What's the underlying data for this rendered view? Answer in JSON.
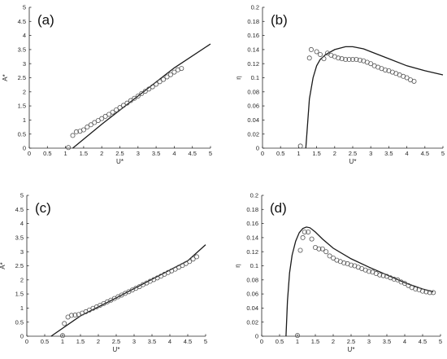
{
  "chart_data": [
    {
      "type": "scatter",
      "panel": "(a)",
      "xlabel": "U*",
      "ylabel": "A*",
      "xlim": [
        0,
        5
      ],
      "ylim": [
        0,
        5
      ],
      "xticks": [
        "0",
        "0.5",
        "1",
        "1.5",
        "2",
        "2.5",
        "3",
        "3.5",
        "4",
        "4.5",
        "5"
      ],
      "yticks": [
        "0",
        "0.5",
        "1",
        "1.5",
        "2",
        "2.5",
        "3",
        "3.5",
        "4",
        "4.5",
        "5"
      ],
      "grid": false,
      "series": [
        {
          "kind": "line",
          "points": [
            [
              1.2,
              0.0
            ],
            [
              2.0,
              0.85
            ],
            [
              3.0,
              1.85
            ],
            [
              4.0,
              2.85
            ],
            [
              5.0,
              3.7
            ]
          ]
        },
        {
          "kind": "markers",
          "points": [
            [
              1.08,
              0.02
            ],
            [
              1.2,
              0.45
            ],
            [
              1.3,
              0.58
            ],
            [
              1.4,
              0.6
            ],
            [
              1.5,
              0.65
            ],
            [
              1.6,
              0.75
            ],
            [
              1.7,
              0.83
            ],
            [
              1.8,
              0.91
            ],
            [
              1.9,
              0.98
            ],
            [
              2.0,
              1.05
            ],
            [
              2.1,
              1.13
            ],
            [
              2.2,
              1.2
            ],
            [
              2.3,
              1.28
            ],
            [
              2.4,
              1.36
            ],
            [
              2.5,
              1.44
            ],
            [
              2.6,
              1.52
            ],
            [
              2.7,
              1.6
            ],
            [
              2.8,
              1.69
            ],
            [
              2.9,
              1.77
            ],
            [
              3.0,
              1.85
            ],
            [
              3.1,
              1.94
            ],
            [
              3.2,
              2.02
            ],
            [
              3.3,
              2.1
            ],
            [
              3.4,
              2.18
            ],
            [
              3.5,
              2.27
            ],
            [
              3.6,
              2.36
            ],
            [
              3.7,
              2.44
            ],
            [
              3.8,
              2.53
            ],
            [
              3.9,
              2.61
            ],
            [
              4.0,
              2.7
            ],
            [
              4.1,
              2.78
            ],
            [
              4.2,
              2.83
            ]
          ]
        }
      ]
    },
    {
      "type": "scatter",
      "panel": "(b)",
      "xlabel": "U*",
      "ylabel": "η",
      "xlim": [
        0,
        5
      ],
      "ylim": [
        0,
        0.2
      ],
      "xticks": [
        "0",
        "0.5",
        "1",
        "1.5",
        "2",
        "2.5",
        "3",
        "3.5",
        "4",
        "4.5",
        "5"
      ],
      "yticks": [
        "0",
        "0.02",
        "0.04",
        "0.06",
        "0.08",
        "0.1",
        "0.12",
        "0.14",
        "0.16",
        "0.18",
        "0.2"
      ],
      "grid": false,
      "series": [
        {
          "kind": "line",
          "points": [
            [
              1.2,
              0.0
            ],
            [
              1.25,
              0.035
            ],
            [
              1.3,
              0.07
            ],
            [
              1.4,
              0.1
            ],
            [
              1.5,
              0.117
            ],
            [
              1.6,
              0.126
            ],
            [
              1.75,
              0.133
            ],
            [
              2.0,
              0.14
            ],
            [
              2.3,
              0.144
            ],
            [
              2.5,
              0.144
            ],
            [
              2.8,
              0.141
            ],
            [
              3.0,
              0.137
            ],
            [
              3.5,
              0.127
            ],
            [
              4.0,
              0.117
            ],
            [
              4.5,
              0.11
            ],
            [
              5.0,
              0.104
            ]
          ]
        },
        {
          "kind": "markers",
          "points": [
            [
              1.05,
              0.003
            ],
            [
              1.3,
              0.128
            ],
            [
              1.35,
              0.14
            ],
            [
              1.5,
              0.137
            ],
            [
              1.6,
              0.133
            ],
            [
              1.7,
              0.127
            ],
            [
              1.8,
              0.135
            ],
            [
              1.9,
              0.132
            ],
            [
              2.0,
              0.13
            ],
            [
              2.1,
              0.128
            ],
            [
              2.2,
              0.127
            ],
            [
              2.3,
              0.126
            ],
            [
              2.4,
              0.126
            ],
            [
              2.5,
              0.126
            ],
            [
              2.6,
              0.126
            ],
            [
              2.7,
              0.125
            ],
            [
              2.8,
              0.124
            ],
            [
              2.9,
              0.122
            ],
            [
              3.0,
              0.12
            ],
            [
              3.1,
              0.117
            ],
            [
              3.2,
              0.115
            ],
            [
              3.3,
              0.113
            ],
            [
              3.4,
              0.111
            ],
            [
              3.5,
              0.11
            ],
            [
              3.6,
              0.108
            ],
            [
              3.7,
              0.106
            ],
            [
              3.8,
              0.104
            ],
            [
              3.9,
              0.102
            ],
            [
              4.0,
              0.1
            ],
            [
              4.1,
              0.097
            ],
            [
              4.2,
              0.095
            ]
          ]
        }
      ]
    },
    {
      "type": "scatter",
      "panel": "(c)",
      "xlabel": "U*",
      "ylabel": "A*",
      "xlim": [
        0,
        5
      ],
      "ylim": [
        0,
        5
      ],
      "xticks": [
        "0",
        "0.5",
        "1",
        "1.5",
        "2",
        "2.5",
        "3",
        "3.5",
        "4",
        "4.5",
        "5"
      ],
      "yticks": [
        "0",
        "0.5",
        "1",
        "1.5",
        "2",
        "2.5",
        "3",
        "3.5",
        "4",
        "4.5",
        "5"
      ],
      "grid": false,
      "series": [
        {
          "kind": "line",
          "points": [
            [
              0.68,
              0.0
            ],
            [
              1.5,
              0.72
            ],
            [
              2.5,
              1.36
            ],
            [
              3.5,
              2.02
            ],
            [
              4.5,
              2.68
            ],
            [
              5.0,
              3.25
            ]
          ]
        },
        {
          "kind": "markers",
          "points": [
            [
              1.0,
              0.02
            ],
            [
              1.05,
              0.45
            ],
            [
              1.15,
              0.68
            ],
            [
              1.25,
              0.74
            ],
            [
              1.35,
              0.75
            ],
            [
              1.45,
              0.77
            ],
            [
              1.55,
              0.82
            ],
            [
              1.65,
              0.87
            ],
            [
              1.75,
              0.93
            ],
            [
              1.85,
              0.99
            ],
            [
              1.95,
              1.04
            ],
            [
              2.05,
              1.1
            ],
            [
              2.15,
              1.16
            ],
            [
              2.25,
              1.22
            ],
            [
              2.35,
              1.28
            ],
            [
              2.45,
              1.34
            ],
            [
              2.55,
              1.4
            ],
            [
              2.65,
              1.46
            ],
            [
              2.75,
              1.52
            ],
            [
              2.85,
              1.58
            ],
            [
              2.95,
              1.64
            ],
            [
              3.05,
              1.7
            ],
            [
              3.15,
              1.76
            ],
            [
              3.25,
              1.83
            ],
            [
              3.35,
              1.89
            ],
            [
              3.45,
              1.95
            ],
            [
              3.55,
              2.01
            ],
            [
              3.65,
              2.07
            ],
            [
              3.75,
              2.13
            ],
            [
              3.85,
              2.2
            ],
            [
              3.95,
              2.26
            ],
            [
              4.05,
              2.32
            ],
            [
              4.15,
              2.38
            ],
            [
              4.25,
              2.45
            ],
            [
              4.35,
              2.51
            ],
            [
              4.45,
              2.58
            ],
            [
              4.55,
              2.65
            ],
            [
              4.65,
              2.74
            ],
            [
              4.75,
              2.82
            ]
          ]
        }
      ]
    },
    {
      "type": "scatter",
      "panel": "(d)",
      "xlabel": "U*",
      "ylabel": "η",
      "xlim": [
        0,
        5
      ],
      "ylim": [
        0,
        0.2
      ],
      "xticks": [
        "0",
        "0.5",
        "1",
        "1.5",
        "2",
        "2.5",
        "3",
        "3.5",
        "4",
        "4.5",
        "5"
      ],
      "yticks": [
        "0",
        "0.02",
        "0.04",
        "0.06",
        "0.08",
        "0.1",
        "0.12",
        "0.14",
        "0.16",
        "0.18",
        "0.2"
      ],
      "grid": false,
      "series": [
        {
          "kind": "line",
          "points": [
            [
              0.68,
              0.0
            ],
            [
              0.72,
              0.05
            ],
            [
              0.78,
              0.09
            ],
            [
              0.85,
              0.115
            ],
            [
              0.95,
              0.135
            ],
            [
              1.05,
              0.147
            ],
            [
              1.15,
              0.153
            ],
            [
              1.25,
              0.155
            ],
            [
              1.35,
              0.154
            ],
            [
              1.5,
              0.148
            ],
            [
              1.7,
              0.138
            ],
            [
              2.0,
              0.125
            ],
            [
              2.5,
              0.11
            ],
            [
              3.0,
              0.098
            ],
            [
              3.5,
              0.087
            ],
            [
              4.0,
              0.076
            ],
            [
              4.5,
              0.067
            ],
            [
              4.8,
              0.063
            ]
          ]
        },
        {
          "kind": "markers",
          "points": [
            [
              1.0,
              0.001
            ],
            [
              1.08,
              0.122
            ],
            [
              1.15,
              0.14
            ],
            [
              1.2,
              0.148
            ],
            [
              1.3,
              0.148
            ],
            [
              1.4,
              0.138
            ],
            [
              1.5,
              0.126
            ],
            [
              1.6,
              0.124
            ],
            [
              1.7,
              0.124
            ],
            [
              1.8,
              0.12
            ],
            [
              1.9,
              0.114
            ],
            [
              2.0,
              0.111
            ],
            [
              2.1,
              0.108
            ],
            [
              2.2,
              0.106
            ],
            [
              2.3,
              0.104
            ],
            [
              2.4,
              0.103
            ],
            [
              2.5,
              0.101
            ],
            [
              2.6,
              0.1
            ],
            [
              2.7,
              0.098
            ],
            [
              2.8,
              0.096
            ],
            [
              2.9,
              0.094
            ],
            [
              3.0,
              0.092
            ],
            [
              3.1,
              0.091
            ],
            [
              3.2,
              0.089
            ],
            [
              3.3,
              0.087
            ],
            [
              3.4,
              0.086
            ],
            [
              3.5,
              0.085
            ],
            [
              3.6,
              0.083
            ],
            [
              3.7,
              0.081
            ],
            [
              3.8,
              0.08
            ],
            [
              3.9,
              0.077
            ],
            [
              4.0,
              0.075
            ],
            [
              4.1,
              0.072
            ],
            [
              4.2,
              0.069
            ],
            [
              4.3,
              0.067
            ],
            [
              4.4,
              0.066
            ],
            [
              4.5,
              0.064
            ],
            [
              4.6,
              0.063
            ],
            [
              4.7,
              0.062
            ],
            [
              4.8,
              0.062
            ]
          ]
        }
      ]
    }
  ]
}
